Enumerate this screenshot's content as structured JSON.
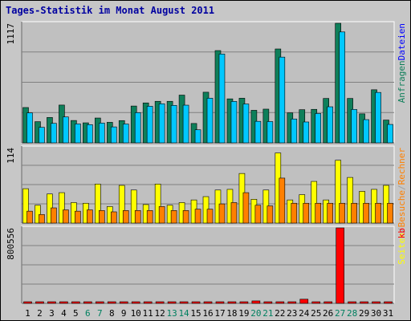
{
  "chart_data": {
    "type": "bar",
    "title": "Tages-Statistik im Monat August 2011",
    "categories": [
      "1",
      "2",
      "3",
      "4",
      "5",
      "6",
      "7",
      "8",
      "9",
      "10",
      "11",
      "12",
      "13",
      "14",
      "15",
      "16",
      "17",
      "18",
      "19",
      "20",
      "21",
      "22",
      "23",
      "24",
      "25",
      "26",
      "27",
      "28",
      "29",
      "30",
      "31"
    ],
    "weekend_days": [
      "6",
      "7",
      "13",
      "14",
      "20",
      "21",
      "27",
      "28"
    ],
    "panels": [
      {
        "name": "top",
        "axis_max_label": "1117",
        "ylim": [
          0,
          1117
        ],
        "series": [
          {
            "name": "Anfragen",
            "color": "#0e7f5a",
            "values": [
              330,
              198,
              237,
              353,
              209,
              187,
              232,
              192,
              208,
              344,
              373,
              388,
              388,
              446,
              181,
              473,
              862,
              411,
              417,
              304,
              315,
              877,
              280,
              310,
              313,
              415,
              1117,
              415,
              271,
              496,
              213
            ]
          },
          {
            "name": "Dateien",
            "color": "#00c8ff",
            "values": [
              280,
              145,
              182,
              242,
              177,
              170,
              185,
              149,
              176,
              282,
              342,
              365,
              350,
              352,
              122,
              417,
              830,
              387,
              363,
              201,
              199,
              801,
              223,
              195,
              274,
              337,
              1036,
              312,
              217,
              471,
              172
            ]
          }
        ],
        "right_labels": [
          {
            "text": "Anfragen",
            "color": "#0e7f5a"
          },
          {
            "text": "Dateien",
            "color": "#0000ff"
          }
        ]
      },
      {
        "name": "middle",
        "axis_max_label": "114",
        "ylim": [
          0,
          114
        ],
        "series": [
          {
            "name": "Seiten",
            "color": "#ffff00",
            "values": [
              52,
              27,
              44,
              46,
              31,
              30,
              59,
              25,
              57,
              50,
              28,
              59,
              27,
              31,
              35,
              40,
              50,
              51,
              75,
              36,
              50,
              106,
              35,
              43,
              63,
              35,
              95,
              69,
              48,
              51,
              57
            ]
          },
          {
            "name": "Besuche",
            "color": "#ff8000",
            "values": [
              18,
              13,
              23,
              20,
              18,
              20,
              19,
              17,
              19,
              19,
              19,
              25,
              19,
              19,
              21,
              21,
              29,
              31,
              46,
              27,
              26,
              68,
              30,
              30,
              30,
              30,
              30,
              30,
              30,
              30,
              30
            ]
          }
        ],
        "right_labels": [
          {
            "text": "Seiten",
            "color": "#ffff00"
          },
          {
            "text": "/",
            "color": "#a0a0a0"
          },
          {
            "text": "Besuche",
            "color": "#ff8000"
          },
          {
            "text": "/",
            "color": "#a0a0a0"
          },
          {
            "text": "Rechner",
            "color": "#ff8000"
          }
        ]
      },
      {
        "name": "bottom",
        "axis_max_label": "800556",
        "ylim": [
          0,
          800556
        ],
        "series": [
          {
            "name": "kb",
            "color": "#ff0000",
            "values": [
              9000,
              9000,
              9000,
              9000,
              9000,
              9000,
              9000,
              9000,
              9000,
              9000,
              9000,
              9000,
              9000,
              9000,
              9000,
              9000,
              9000,
              9000,
              9000,
              26000,
              9000,
              9000,
              9000,
              44000,
              9000,
              9000,
              800556,
              9000,
              9000,
              9000,
              9000
            ]
          }
        ],
        "right_labels": [
          {
            "text": "kb",
            "color": "#ff0000"
          }
        ]
      }
    ]
  }
}
